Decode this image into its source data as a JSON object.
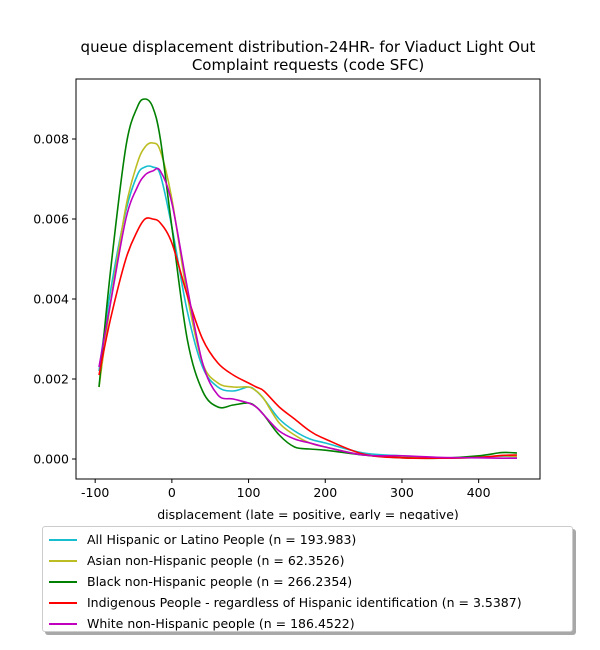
{
  "chart_data": {
    "type": "line",
    "title": "queue displacement distribution-24HR-  for Viaduct Light Out Complaint  requests (code SFC)",
    "title_lines": [
      "queue displacement distribution-24HR-  for Viaduct Light Out",
      "Complaint  requests (code SFC)"
    ],
    "xlabel": "displacement (late = positive, early = negative)",
    "ylabel": "",
    "xlim": [
      -125,
      480
    ],
    "ylim": [
      -0.0005,
      0.0095
    ],
    "x_ticks": [
      -100,
      0,
      100,
      200,
      300,
      400
    ],
    "y_ticks": [
      0.0,
      0.002,
      0.004,
      0.006,
      0.008
    ],
    "y_tick_labels": [
      "0.000",
      "0.002",
      "0.004",
      "0.006",
      "0.008"
    ],
    "grid": false,
    "legend_position": "below",
    "x": [
      -95,
      -80,
      -60,
      -45,
      -35,
      -25,
      -15,
      0,
      20,
      40,
      60,
      80,
      100,
      110,
      120,
      140,
      160,
      180,
      200,
      250,
      300,
      350,
      400,
      430,
      450
    ],
    "series": [
      {
        "name": "All Hispanic or Latino People (n = 193.983)",
        "color": "#17becf",
        "values": [
          0.0022,
          0.0042,
          0.0062,
          0.0071,
          0.0073,
          0.0073,
          0.0071,
          0.0058,
          0.0037,
          0.0023,
          0.0018,
          0.0017,
          0.0018,
          0.0017,
          0.0015,
          0.001,
          0.0007,
          0.0005,
          0.0004,
          0.00015,
          8e-05,
          3e-05,
          5e-05,
          7e-05,
          6e-05
        ]
      },
      {
        "name": "Asian non-Hispanic people (n = 62.3526)",
        "color": "#bcbd22",
        "values": [
          0.0018,
          0.0039,
          0.0063,
          0.0074,
          0.0078,
          0.0079,
          0.0077,
          0.0065,
          0.0041,
          0.0024,
          0.0019,
          0.0018,
          0.0018,
          0.0017,
          0.0015,
          0.0009,
          0.0006,
          0.0004,
          0.0003,
          0.0001,
          5e-05,
          2e-05,
          4e-05,
          8e-05,
          6e-05
        ]
      },
      {
        "name": "Black non-Hispanic people (n = 266.2354)",
        "color": "#008000",
        "values": [
          0.0018,
          0.0047,
          0.0078,
          0.0088,
          0.009,
          0.0088,
          0.008,
          0.0058,
          0.003,
          0.0017,
          0.0013,
          0.00135,
          0.0014,
          0.0013,
          0.0011,
          0.0006,
          0.0003,
          0.00025,
          0.00022,
          0.0001,
          3e-05,
          2e-05,
          8e-05,
          0.00016,
          0.00015
        ]
      },
      {
        "name": "Indigenous People - regardless of Hispanic identification (n = 3.5387)",
        "color": "#ff0000",
        "values": [
          0.0021,
          0.0035,
          0.005,
          0.0057,
          0.006,
          0.006,
          0.0059,
          0.0054,
          0.0041,
          0.003,
          0.0024,
          0.0021,
          0.0019,
          0.0018,
          0.0017,
          0.0013,
          0.001,
          0.0007,
          0.0005,
          0.00012,
          3e-05,
          2e-05,
          4e-05,
          9e-05,
          0.0001
        ]
      },
      {
        "name": "White non-Hispanic people (n = 186.4522)",
        "color": "#bf00bf",
        "values": [
          0.0023,
          0.0039,
          0.006,
          0.0068,
          0.0071,
          0.0072,
          0.0072,
          0.0064,
          0.0043,
          0.0024,
          0.0016,
          0.0015,
          0.0014,
          0.0013,
          0.0011,
          0.0007,
          0.0005,
          0.0004,
          0.0003,
          0.0001,
          8e-05,
          4e-05,
          3e-05,
          2e-05,
          2e-05
        ]
      }
    ]
  }
}
